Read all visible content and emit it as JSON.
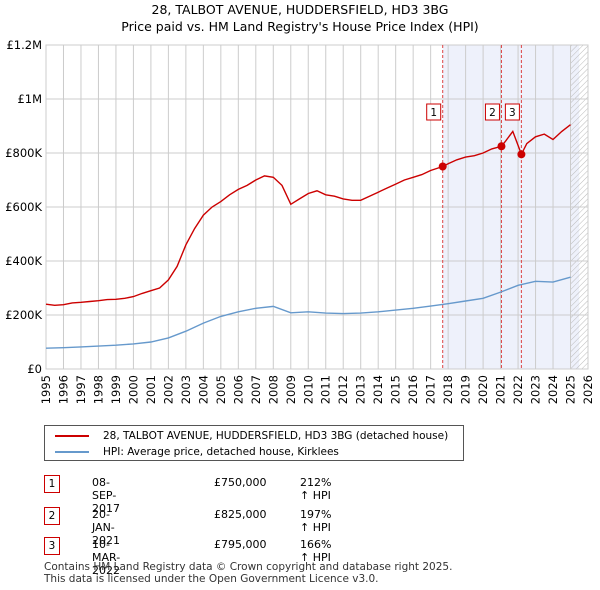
{
  "chart_data": {
    "type": "line",
    "title": "28, TALBOT AVENUE, HUDDERSFIELD, HD3 3BG",
    "subtitle": "Price paid vs. HM Land Registry's House Price Index (HPI)",
    "ylim": [
      0,
      1200000
    ],
    "xlim": [
      1995,
      2026
    ],
    "yticks": [
      {
        "value": 0,
        "label": "£0"
      },
      {
        "value": 200000,
        "label": "£200K"
      },
      {
        "value": 400000,
        "label": "£400K"
      },
      {
        "value": 600000,
        "label": "£600K"
      },
      {
        "value": 800000,
        "label": "£800K"
      },
      {
        "value": 1000000,
        "label": "£1M"
      },
      {
        "value": 1200000,
        "label": "£1.2M"
      }
    ],
    "xticks": [
      1995,
      1996,
      1997,
      1998,
      1999,
      2000,
      2001,
      2002,
      2003,
      2004,
      2005,
      2006,
      2007,
      2008,
      2009,
      2010,
      2011,
      2012,
      2013,
      2014,
      2015,
      2016,
      2017,
      2018,
      2019,
      2020,
      2021,
      2022,
      2023,
      2024,
      2025,
      2026
    ],
    "series": [
      {
        "name": "28, TALBOT AVENUE, HUDDERSFIELD, HD3 3BG (detached house)",
        "color": "#cc0000",
        "points": [
          [
            1995.0,
            240000
          ],
          [
            1995.5,
            236000
          ],
          [
            1996.0,
            238000
          ],
          [
            1996.5,
            245000
          ],
          [
            1997.0,
            247000
          ],
          [
            1997.5,
            250000
          ],
          [
            1998.0,
            253000
          ],
          [
            1998.5,
            257000
          ],
          [
            1999.0,
            258000
          ],
          [
            1999.5,
            262000
          ],
          [
            2000.0,
            268000
          ],
          [
            2000.5,
            280000
          ],
          [
            2001.0,
            290000
          ],
          [
            2001.5,
            300000
          ],
          [
            2002.0,
            330000
          ],
          [
            2002.5,
            380000
          ],
          [
            2003.0,
            460000
          ],
          [
            2003.5,
            520000
          ],
          [
            2004.0,
            570000
          ],
          [
            2004.5,
            600000
          ],
          [
            2005.0,
            620000
          ],
          [
            2005.5,
            645000
          ],
          [
            2006.0,
            665000
          ],
          [
            2006.5,
            680000
          ],
          [
            2007.0,
            700000
          ],
          [
            2007.5,
            715000
          ],
          [
            2008.0,
            710000
          ],
          [
            2008.5,
            680000
          ],
          [
            2009.0,
            610000
          ],
          [
            2009.5,
            630000
          ],
          [
            2010.0,
            650000
          ],
          [
            2010.5,
            660000
          ],
          [
            2011.0,
            645000
          ],
          [
            2011.5,
            640000
          ],
          [
            2012.0,
            630000
          ],
          [
            2012.5,
            625000
          ],
          [
            2013.0,
            625000
          ],
          [
            2013.5,
            640000
          ],
          [
            2014.0,
            655000
          ],
          [
            2014.5,
            670000
          ],
          [
            2015.0,
            685000
          ],
          [
            2015.5,
            700000
          ],
          [
            2016.0,
            710000
          ],
          [
            2016.5,
            720000
          ],
          [
            2017.0,
            735000
          ],
          [
            2017.69,
            750000
          ],
          [
            2018.0,
            760000
          ],
          [
            2018.5,
            775000
          ],
          [
            2019.0,
            785000
          ],
          [
            2019.5,
            790000
          ],
          [
            2020.0,
            800000
          ],
          [
            2020.5,
            815000
          ],
          [
            2021.05,
            825000
          ],
          [
            2021.3,
            845000
          ],
          [
            2021.7,
            880000
          ],
          [
            2022.19,
            795000
          ],
          [
            2022.5,
            835000
          ],
          [
            2023.0,
            860000
          ],
          [
            2023.5,
            870000
          ],
          [
            2024.0,
            850000
          ],
          [
            2024.5,
            880000
          ],
          [
            2025.0,
            905000
          ]
        ]
      },
      {
        "name": "HPI: Average price, detached house, Kirklees",
        "color": "#6699cc",
        "points": [
          [
            1995.0,
            77000
          ],
          [
            1996.0,
            79000
          ],
          [
            1997.0,
            82000
          ],
          [
            1998.0,
            85000
          ],
          [
            1999.0,
            88000
          ],
          [
            2000.0,
            93000
          ],
          [
            2001.0,
            100000
          ],
          [
            2002.0,
            115000
          ],
          [
            2003.0,
            140000
          ],
          [
            2004.0,
            170000
          ],
          [
            2005.0,
            195000
          ],
          [
            2006.0,
            212000
          ],
          [
            2007.0,
            225000
          ],
          [
            2008.0,
            232000
          ],
          [
            2009.0,
            208000
          ],
          [
            2010.0,
            212000
          ],
          [
            2011.0,
            207000
          ],
          [
            2012.0,
            205000
          ],
          [
            2013.0,
            207000
          ],
          [
            2014.0,
            212000
          ],
          [
            2015.0,
            218000
          ],
          [
            2016.0,
            225000
          ],
          [
            2017.0,
            233000
          ],
          [
            2018.0,
            242000
          ],
          [
            2019.0,
            252000
          ],
          [
            2020.0,
            262000
          ],
          [
            2021.0,
            285000
          ],
          [
            2022.0,
            310000
          ],
          [
            2023.0,
            325000
          ],
          [
            2024.0,
            322000
          ],
          [
            2025.0,
            340000
          ]
        ]
      }
    ],
    "sales": [
      {
        "id": "1",
        "x": 2017.69,
        "value": 750000
      },
      {
        "id": "2",
        "x": 2021.05,
        "value": 825000
      },
      {
        "id": "3",
        "x": 2022.19,
        "value": 795000
      }
    ],
    "shaded_from": 2017.69,
    "shaded_to": 2025.5,
    "hatch_from": 2025.0
  },
  "legend": {
    "property": "28, TALBOT AVENUE, HUDDERSFIELD, HD3 3BG (detached house)",
    "hpi": "HPI: Average price, detached house, Kirklees"
  },
  "transactions": [
    {
      "num": "1",
      "date": "08-SEP-2017",
      "price": "£750,000",
      "hpi": "212% ↑ HPI"
    },
    {
      "num": "2",
      "date": "20-JAN-2021",
      "price": "£825,000",
      "hpi": "197% ↑ HPI"
    },
    {
      "num": "3",
      "date": "10-MAR-2022",
      "price": "£795,000",
      "hpi": "166% ↑ HPI"
    }
  ],
  "footer": {
    "line1": "Contains HM Land Registry data © Crown copyright and database right 2025.",
    "line2": "This data is licensed under the Open Government Licence v3.0."
  },
  "colors": {
    "property": "#cc0000",
    "hpi": "#6699cc",
    "grid": "#cccccc",
    "shade": "#eef1fb"
  }
}
